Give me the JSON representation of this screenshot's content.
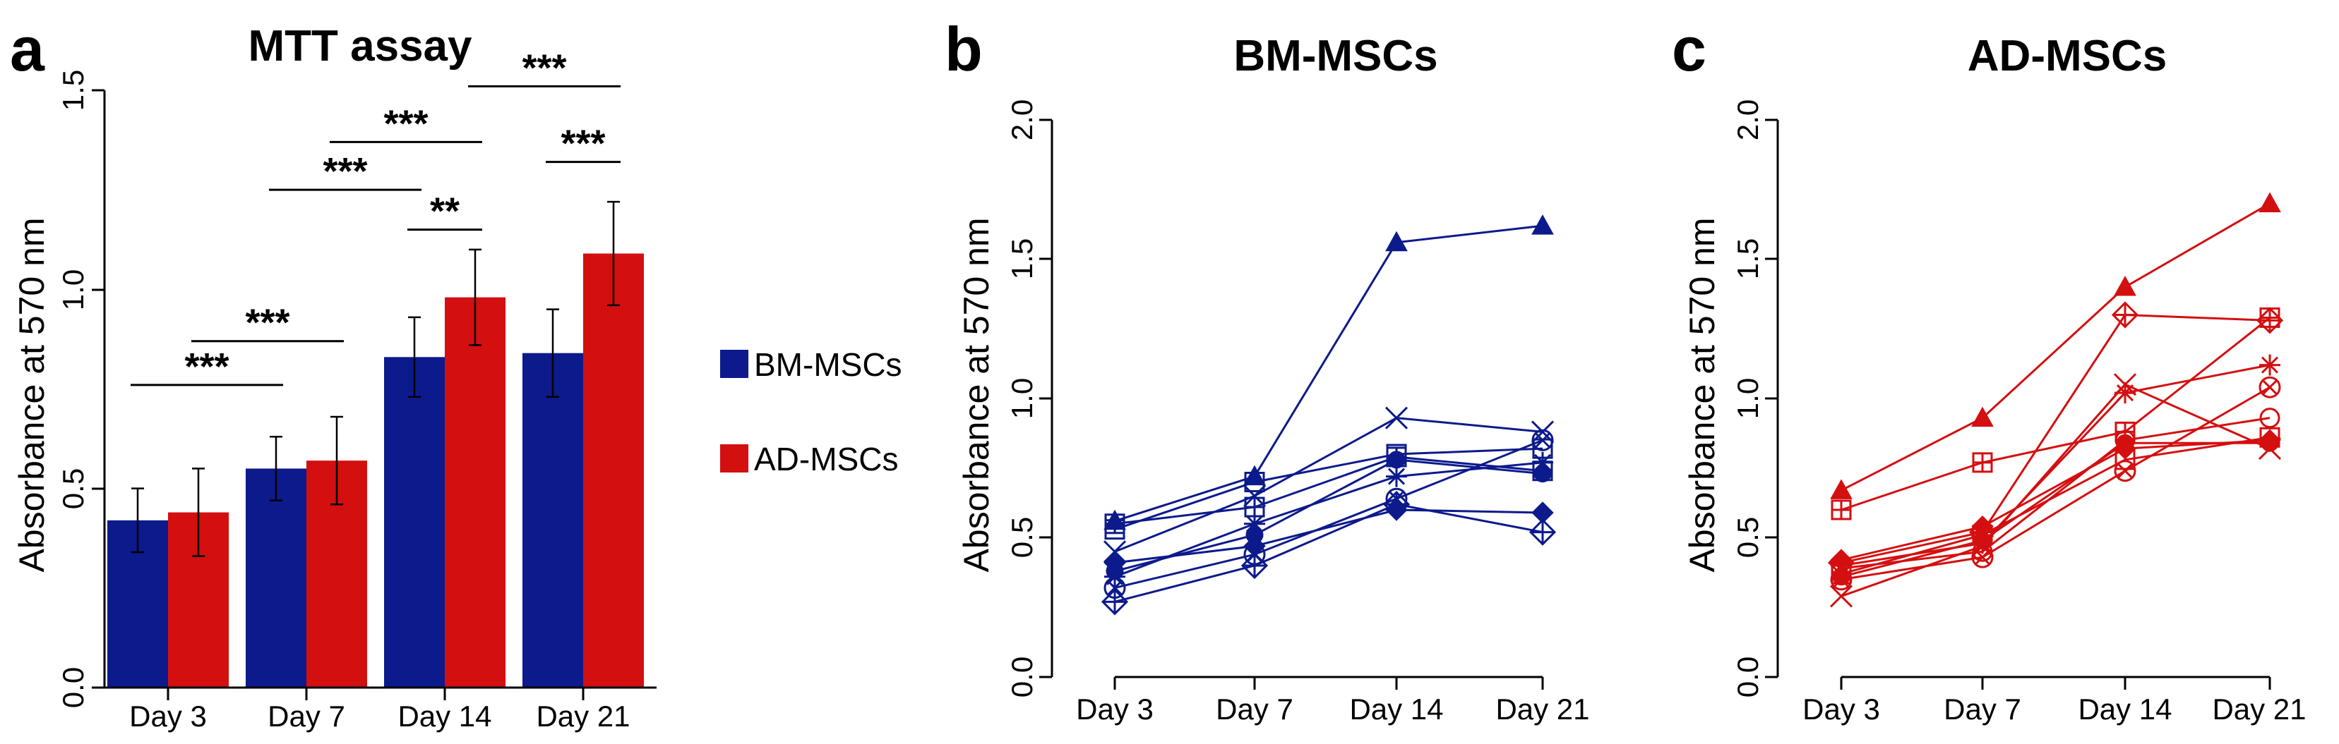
{
  "chart_data": [
    {
      "type": "bar",
      "panel": "a",
      "title": "MTT assay",
      "xlabel": "",
      "ylabel": "Absorbance at 570 nm",
      "ylim": [
        0,
        1.5
      ],
      "yticks": [
        "0.0",
        "0.5",
        "1.0",
        "1.5"
      ],
      "categories": [
        "Day 3",
        "Day 7",
        "Day 14",
        "Day 21"
      ],
      "series": [
        {
          "name": "BM-MSCs",
          "color": "#0c1a8c",
          "values": [
            0.42,
            0.55,
            0.83,
            0.84
          ],
          "errors": [
            0.08,
            0.08,
            0.1,
            0.11
          ]
        },
        {
          "name": "AD-MSCs",
          "color": "#d40f10",
          "values": [
            0.44,
            0.57,
            0.98,
            1.09
          ],
          "errors": [
            0.11,
            0.11,
            0.12,
            0.13
          ]
        }
      ],
      "legend": "right",
      "significance": [
        {
          "label": "***",
          "from": [
            0,
            0
          ],
          "to": [
            1,
            0
          ],
          "level": 0.76
        },
        {
          "label": "***",
          "from": [
            0,
            1
          ],
          "to": [
            1,
            1
          ],
          "level": 0.87
        },
        {
          "label": "***",
          "from": [
            1,
            0
          ],
          "to": [
            2,
            0
          ],
          "level": 1.25
        },
        {
          "label": "***",
          "from": [
            1,
            1
          ],
          "to": [
            2,
            1
          ],
          "level": 1.37
        },
        {
          "label": "**",
          "from": [
            2,
            0
          ],
          "to": [
            2,
            1
          ],
          "level": 1.15
        },
        {
          "label": "***",
          "from": [
            2,
            1
          ],
          "to": [
            3,
            1
          ],
          "level": 1.51
        },
        {
          "label": "***",
          "from": [
            3,
            0
          ],
          "to": [
            3,
            1
          ],
          "level": 1.32
        }
      ]
    },
    {
      "type": "line",
      "panel": "b",
      "title": "BM-MSCs",
      "ylabel": "Absorbance at 570 nm",
      "ylim": [
        0,
        2.0
      ],
      "yticks": [
        "0.0",
        "0.5",
        "1.0",
        "1.5",
        "2.0"
      ],
      "x": [
        "Day 3",
        "Day 7",
        "Day 14",
        "Day 21"
      ],
      "color": "#0c1a8c",
      "series": [
        {
          "name": "triangle",
          "marker": "triangle-filled",
          "values": [
            0.56,
            0.72,
            1.56,
            1.62
          ]
        },
        {
          "name": "square",
          "marker": "square-open",
          "values": [
            0.53,
            0.7,
            0.8,
            0.82
          ]
        },
        {
          "name": "cross",
          "marker": "x",
          "values": [
            0.45,
            0.65,
            0.93,
            0.88
          ]
        },
        {
          "name": "circle-filled",
          "marker": "circle-filled",
          "values": [
            0.38,
            0.51,
            0.78,
            0.73
          ]
        },
        {
          "name": "circle-x",
          "marker": "circle-x",
          "values": [
            0.32,
            0.44,
            0.64,
            0.85
          ]
        },
        {
          "name": "diamond-filled",
          "marker": "diamond-filled",
          "values": [
            0.41,
            0.47,
            0.6,
            0.59
          ]
        },
        {
          "name": "diamond-plus",
          "marker": "diamond-plus",
          "values": [
            0.27,
            0.4,
            0.62,
            0.52
          ]
        },
        {
          "name": "asterisk",
          "marker": "asterisk",
          "values": [
            0.36,
            0.55,
            0.72,
            0.77
          ]
        },
        {
          "name": "square-plus",
          "marker": "square-plus",
          "values": [
            0.55,
            0.61,
            0.79,
            0.74
          ]
        }
      ]
    },
    {
      "type": "line",
      "panel": "c",
      "title": "AD-MSCs",
      "ylabel": "Absorbance at 570 nm",
      "ylim": [
        0,
        2.0
      ],
      "yticks": [
        "0.0",
        "0.5",
        "1.0",
        "1.5",
        "2.0"
      ],
      "x": [
        "Day 3",
        "Day 7",
        "Day 14",
        "Day 21"
      ],
      "color": "#d40f10",
      "series": [
        {
          "name": "triangle",
          "marker": "triangle-filled",
          "values": [
            0.67,
            0.93,
            1.4,
            1.7
          ]
        },
        {
          "name": "square-plus",
          "marker": "square-plus",
          "values": [
            0.6,
            0.77,
            0.88,
            1.29
          ]
        },
        {
          "name": "diamond-plus",
          "marker": "diamond-plus",
          "values": [
            0.41,
            0.52,
            1.3,
            1.28
          ]
        },
        {
          "name": "asterisk",
          "marker": "asterisk",
          "values": [
            0.4,
            0.48,
            1.02,
            1.12
          ]
        },
        {
          "name": "cross",
          "marker": "x",
          "values": [
            0.29,
            0.47,
            1.05,
            0.82
          ]
        },
        {
          "name": "circle-filled",
          "marker": "circle-filled",
          "values": [
            0.36,
            0.49,
            0.84,
            0.84
          ]
        },
        {
          "name": "circle-open",
          "marker": "circle-open",
          "values": [
            0.39,
            0.45,
            0.85,
            0.93
          ]
        },
        {
          "name": "circle-x",
          "marker": "circle-x",
          "values": [
            0.35,
            0.43,
            0.74,
            1.04
          ]
        },
        {
          "name": "diamond-filled",
          "marker": "diamond-filled",
          "values": [
            0.42,
            0.54,
            0.82,
            0.85
          ]
        },
        {
          "name": "square",
          "marker": "square-open",
          "values": [
            0.37,
            0.51,
            0.78,
            0.86
          ]
        }
      ]
    }
  ]
}
